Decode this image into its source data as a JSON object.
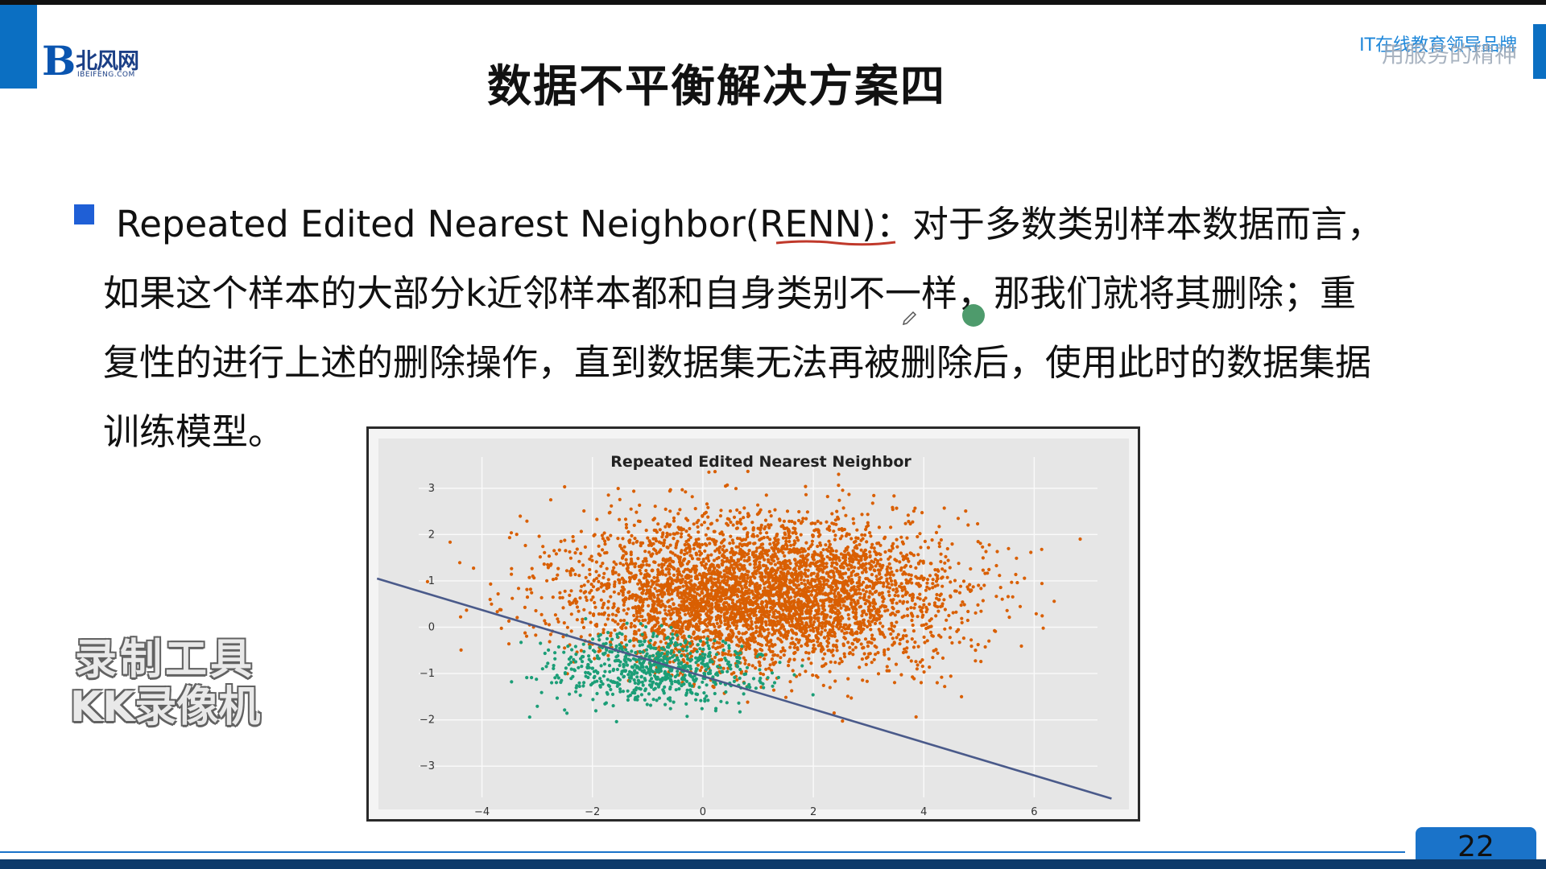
{
  "slide": {
    "logo_text": "北风网",
    "logo_domain": "IBEIFENG.COM",
    "title": "数据不平衡解决方案四",
    "brand_line1": "IT在线教育领导品牌",
    "brand_line2": "用服务的精神",
    "body_lines": [
      "Repeated Edited Nearest Neighbor(RENN)：对于多数类别样本数据而言，",
      "如果这个样本的大部分k近邻样本都和自身类别不一样，那我们就将其删除；重",
      "复性的进行上述的删除操作，直到数据集无法再被删除后，使用此时的数据集据",
      "训练模型。"
    ],
    "watermark_line1": "录制工具",
    "watermark_line2": "KK录像机",
    "page_number": "22"
  },
  "colors": {
    "accent_blue": "#0b6fc2",
    "majority_class": "#d95f02",
    "minority_class": "#1b9e77",
    "boundary_line": "#4a5a8a"
  },
  "chart_data": {
    "type": "scatter",
    "title": "Repeated Edited Nearest Neighbor",
    "xlabel": "",
    "ylabel": "",
    "xlim": [
      -5,
      7
    ],
    "ylim": [
      -3.5,
      3.5
    ],
    "x_ticks": [
      "−4",
      "−2",
      "0",
      "2",
      "4",
      "6"
    ],
    "y_ticks": [
      "3",
      "2",
      "1",
      "0",
      "−1",
      "−2",
      "−3"
    ],
    "grid": true,
    "series": [
      {
        "class": "majority",
        "color": "#d95f02",
        "center": [
          1.0,
          0.7
        ],
        "spread": [
          1.7,
          0.8
        ],
        "count_approx": 4500
      },
      {
        "class": "minority",
        "color": "#1b9e77",
        "center": [
          -0.9,
          -0.9
        ],
        "spread": [
          1.0,
          0.4
        ],
        "count_approx": 700
      }
    ],
    "boundary_line": {
      "from": [
        -5.9,
        1.05
      ],
      "to": [
        7.4,
        -3.7
      ]
    }
  }
}
